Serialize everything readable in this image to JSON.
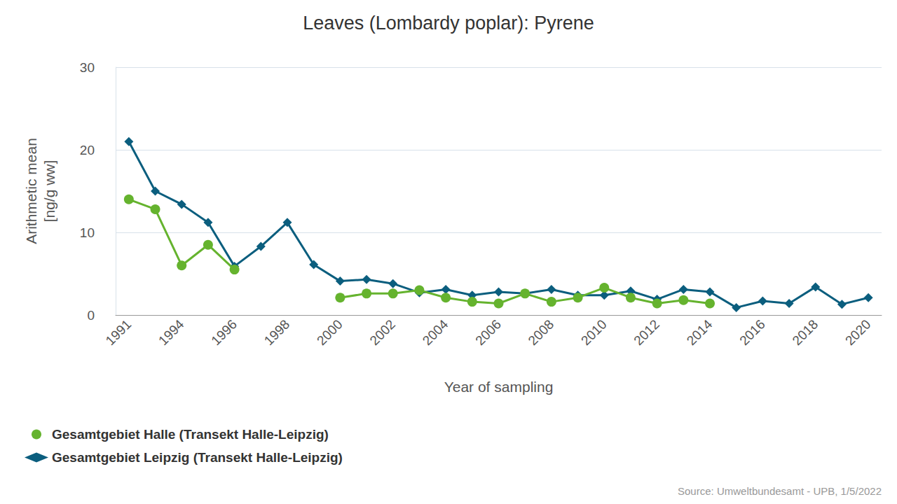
{
  "chart_data": {
    "type": "line",
    "title": "Leaves (Lombardy poplar): Pyrene",
    "x_label": "Year of sampling",
    "y_label": "Arithmetic mean\n[ng/g ww]",
    "source": "Source: Umweltbundesamt - UPB, 1/5/2022",
    "categories": [
      "1991",
      null,
      "1994",
      null,
      "1996",
      null,
      "1998",
      null,
      "2000",
      null,
      "2002",
      null,
      "2004",
      null,
      "2006",
      null,
      "2008",
      null,
      "2010",
      null,
      "2012",
      null,
      "2014",
      null,
      "2016",
      null,
      "2018",
      null,
      "2020"
    ],
    "series": [
      {
        "name": "Gesamtgebiet Halle (Transekt Halle-Leipzig)",
        "color": "#65b32e",
        "marker": "circle",
        "values": [
          14,
          12.8,
          6.0,
          8.5,
          5.5,
          null,
          null,
          null,
          2.1,
          2.6,
          2.6,
          3.0,
          2.1,
          1.6,
          1.4,
          2.6,
          1.6,
          2.1,
          3.3,
          2.1,
          1.4,
          1.8,
          1.4,
          null,
          null,
          null,
          null,
          null,
          null
        ]
      },
      {
        "name": "Gesamtgebiet Leipzig (Transekt Halle-Leipzig)",
        "color": "#0b5e7e",
        "marker": "diamond",
        "values": [
          21,
          15,
          13.4,
          11.2,
          5.9,
          8.3,
          11.2,
          6.1,
          4.1,
          4.3,
          3.8,
          2.7,
          3.1,
          2.4,
          2.8,
          2.6,
          3.1,
          2.4,
          2.4,
          2.9,
          1.9,
          3.1,
          2.8,
          0.9,
          1.7,
          1.4,
          3.4,
          1.3,
          2.1
        ]
      }
    ],
    "ylim": [
      0,
      30
    ],
    "yticks": [
      0,
      10,
      20,
      30
    ],
    "grid": true,
    "legend": "bottom-left"
  }
}
